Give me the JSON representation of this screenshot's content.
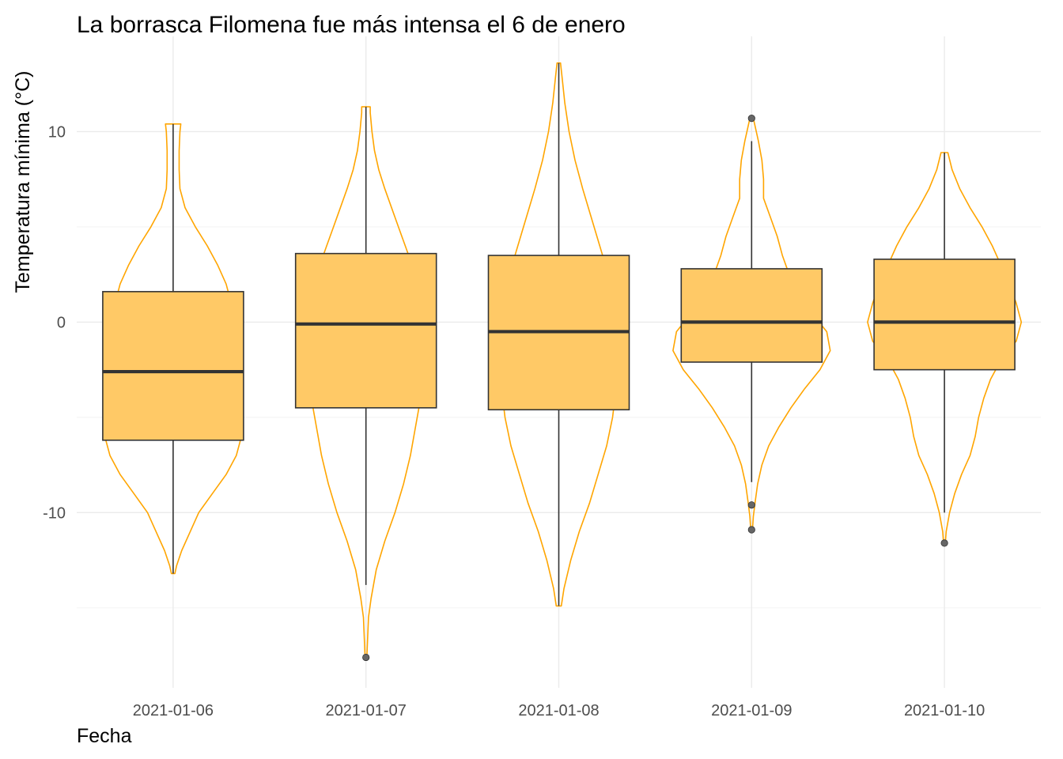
{
  "chart_data": {
    "type": "box",
    "overlay": "violin",
    "title": "La borrasca Filomena fue más intensa el 6 de enero",
    "xlabel": "Fecha",
    "ylabel": "Temperatura mínima (°C)",
    "ylim": [
      -19.2,
      15.0
    ],
    "yticks": [
      -10,
      0,
      10
    ],
    "y_minor_ticks": [
      -15,
      -5,
      5
    ],
    "grid": true,
    "box_fill": "#ffc966",
    "box_outline": "#333333",
    "violin_color": "#ffa500",
    "outlier_color": "#666666",
    "categories": [
      "2021-01-06",
      "2021-01-07",
      "2021-01-08",
      "2021-01-09",
      "2021-01-10"
    ],
    "boxes": [
      {
        "category": "2021-01-06",
        "whisker_low": -13.2,
        "q1": -6.2,
        "median": -2.6,
        "q3": 1.6,
        "whisker_high": 10.4,
        "outliers": []
      },
      {
        "category": "2021-01-07",
        "whisker_low": -13.8,
        "q1": -4.5,
        "median": -0.1,
        "q3": 3.6,
        "whisker_high": 11.3,
        "outliers": [
          -17.6
        ]
      },
      {
        "category": "2021-01-08",
        "whisker_low": -14.9,
        "q1": -4.6,
        "median": -0.5,
        "q3": 3.5,
        "whisker_high": 13.6,
        "outliers": []
      },
      {
        "category": "2021-01-09",
        "whisker_low": -8.4,
        "q1": -2.1,
        "median": 0.0,
        "q3": 2.8,
        "whisker_high": 9.5,
        "outliers": [
          10.7,
          -9.6,
          -10.9
        ]
      },
      {
        "category": "2021-01-10",
        "whisker_low": -10.0,
        "q1": -2.5,
        "median": 0.0,
        "q3": 3.3,
        "whisker_high": 8.9,
        "outliers": [
          -11.6
        ]
      }
    ],
    "violins": [
      {
        "category": "2021-01-06",
        "range": [
          -13.2,
          10.4
        ],
        "profile": [
          [
            -13.2,
            0.02
          ],
          [
            -12.8,
            0.04
          ],
          [
            -12.0,
            0.1
          ],
          [
            -11.0,
            0.2
          ],
          [
            -10.0,
            0.3
          ],
          [
            -9.0,
            0.46
          ],
          [
            -8.0,
            0.62
          ],
          [
            -7.0,
            0.74
          ],
          [
            -6.0,
            0.8
          ],
          [
            -5.0,
            0.8
          ],
          [
            -4.0,
            0.76
          ],
          [
            -3.0,
            0.7
          ],
          [
            -2.0,
            0.68
          ],
          [
            -1.0,
            0.68
          ],
          [
            0.0,
            0.7
          ],
          [
            1.0,
            0.68
          ],
          [
            2.0,
            0.62
          ],
          [
            3.0,
            0.52
          ],
          [
            4.0,
            0.4
          ],
          [
            5.0,
            0.26
          ],
          [
            6.0,
            0.14
          ],
          [
            7.0,
            0.08
          ],
          [
            8.0,
            0.07
          ],
          [
            9.0,
            0.07
          ],
          [
            10.0,
            0.08
          ],
          [
            10.4,
            0.09
          ]
        ]
      },
      {
        "category": "2021-01-07",
        "range": [
          -17.6,
          11.3
        ],
        "profile": [
          [
            -17.6,
            0.01
          ],
          [
            -16.5,
            0.02
          ],
          [
            -15.5,
            0.03
          ],
          [
            -14.5,
            0.06
          ],
          [
            -13.0,
            0.12
          ],
          [
            -11.5,
            0.22
          ],
          [
            -10.0,
            0.34
          ],
          [
            -8.5,
            0.44
          ],
          [
            -7.0,
            0.52
          ],
          [
            -6.0,
            0.56
          ],
          [
            -5.0,
            0.6
          ],
          [
            -4.0,
            0.64
          ],
          [
            -3.0,
            0.66
          ],
          [
            -2.0,
            0.68
          ],
          [
            -1.0,
            0.69
          ],
          [
            0.0,
            0.7
          ],
          [
            1.0,
            0.68
          ],
          [
            2.0,
            0.62
          ],
          [
            3.0,
            0.54
          ],
          [
            4.0,
            0.46
          ],
          [
            5.0,
            0.38
          ],
          [
            6.0,
            0.3
          ],
          [
            7.0,
            0.22
          ],
          [
            8.0,
            0.15
          ],
          [
            9.0,
            0.1
          ],
          [
            10.0,
            0.07
          ],
          [
            11.0,
            0.05
          ],
          [
            11.3,
            0.05
          ]
        ]
      },
      {
        "category": "2021-01-08",
        "range": [
          -14.9,
          13.6
        ],
        "profile": [
          [
            -14.9,
            0.03
          ],
          [
            -14.0,
            0.06
          ],
          [
            -12.5,
            0.14
          ],
          [
            -11.0,
            0.24
          ],
          [
            -9.5,
            0.36
          ],
          [
            -8.0,
            0.46
          ],
          [
            -6.5,
            0.56
          ],
          [
            -5.0,
            0.63
          ],
          [
            -3.5,
            0.67
          ],
          [
            -2.0,
            0.7
          ],
          [
            -0.5,
            0.7
          ],
          [
            1.0,
            0.66
          ],
          [
            2.5,
            0.58
          ],
          [
            4.0,
            0.48
          ],
          [
            5.5,
            0.38
          ],
          [
            7.0,
            0.28
          ],
          [
            8.5,
            0.19
          ],
          [
            10.0,
            0.12
          ],
          [
            11.5,
            0.07
          ],
          [
            12.8,
            0.04
          ],
          [
            13.6,
            0.02
          ]
        ]
      },
      {
        "category": "2021-01-09",
        "range": [
          -10.9,
          10.7
        ],
        "profile": [
          [
            -10.9,
            0.01
          ],
          [
            -10.2,
            0.02
          ],
          [
            -9.5,
            0.04
          ],
          [
            -8.5,
            0.07
          ],
          [
            -7.5,
            0.12
          ],
          [
            -6.5,
            0.2
          ],
          [
            -5.5,
            0.32
          ],
          [
            -4.5,
            0.46
          ],
          [
            -3.5,
            0.62
          ],
          [
            -2.5,
            0.8
          ],
          [
            -1.5,
            0.92
          ],
          [
            -0.5,
            0.88
          ],
          [
            0.5,
            0.7
          ],
          [
            1.5,
            0.55
          ],
          [
            2.5,
            0.44
          ],
          [
            3.5,
            0.36
          ],
          [
            4.5,
            0.3
          ],
          [
            5.5,
            0.22
          ],
          [
            6.5,
            0.14
          ],
          [
            7.5,
            0.14
          ],
          [
            8.5,
            0.12
          ],
          [
            9.5,
            0.08
          ],
          [
            10.3,
            0.04
          ],
          [
            10.7,
            0.02
          ]
        ]
      },
      {
        "category": "2021-01-10",
        "range": [
          -11.6,
          8.9
        ],
        "profile": [
          [
            -11.6,
            0.01
          ],
          [
            -11.0,
            0.02
          ],
          [
            -10.0,
            0.06
          ],
          [
            -9.0,
            0.12
          ],
          [
            -8.0,
            0.2
          ],
          [
            -7.0,
            0.3
          ],
          [
            -6.0,
            0.36
          ],
          [
            -5.0,
            0.4
          ],
          [
            -4.0,
            0.46
          ],
          [
            -3.0,
            0.54
          ],
          [
            -2.0,
            0.66
          ],
          [
            -1.0,
            0.84
          ],
          [
            0.0,
            0.9
          ],
          [
            1.0,
            0.84
          ],
          [
            2.0,
            0.76
          ],
          [
            3.0,
            0.66
          ],
          [
            4.0,
            0.56
          ],
          [
            5.0,
            0.44
          ],
          [
            6.0,
            0.3
          ],
          [
            7.0,
            0.18
          ],
          [
            8.0,
            0.09
          ],
          [
            8.9,
            0.04
          ]
        ]
      }
    ]
  }
}
